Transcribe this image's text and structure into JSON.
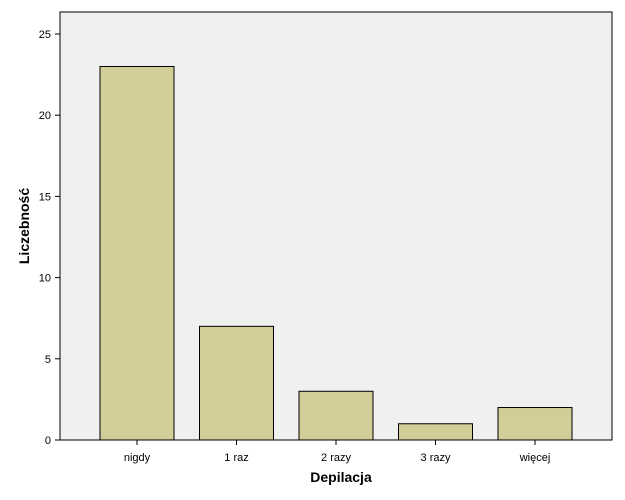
{
  "colors": {
    "plot_background": "#f0f0f0",
    "bar_fill": "#d3ce97",
    "bar_stroke": "#000000",
    "axis": "#000000",
    "page_background": "#ffffff"
  },
  "chart_data": {
    "type": "bar",
    "categories": [
      "nigdy",
      "1 raz",
      "2 razy",
      "3 razy",
      "więcej"
    ],
    "values": [
      23,
      7,
      3,
      1,
      2
    ],
    "title": "",
    "xlabel": "Depilacja",
    "ylabel": "Liczebność",
    "ylim": [
      0,
      25
    ],
    "yticks": [
      0,
      5,
      10,
      15,
      20,
      25
    ],
    "grid": false,
    "legend": "none"
  }
}
